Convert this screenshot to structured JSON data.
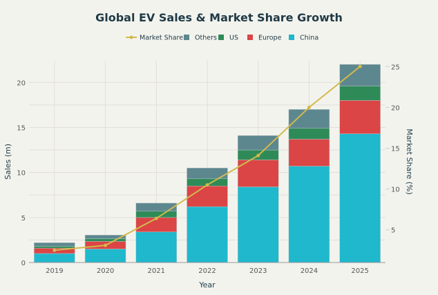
{
  "chart_data": {
    "type": "bar",
    "stacked": true,
    "title": "Global EV Sales & Market Share Growth",
    "xlabel": "Year",
    "ylabel": "Sales (m)",
    "y2label": "Market Share (%)",
    "categories": [
      "2019",
      "2020",
      "2021",
      "2022",
      "2023",
      "2024",
      "2025"
    ],
    "ylim": [
      0,
      22.4
    ],
    "y2lim": [
      1,
      25.7
    ],
    "yticks": [
      0,
      5,
      10,
      15,
      20
    ],
    "y2ticks": [
      5,
      10,
      15,
      20,
      25
    ],
    "grid": true,
    "legend_position": "top-center",
    "series": [
      {
        "name": "China",
        "type": "bar",
        "color": "#1FB8CD",
        "values": [
          1.0,
          1.5,
          3.4,
          6.2,
          8.4,
          10.7,
          14.3
        ]
      },
      {
        "name": "Europe",
        "type": "bar",
        "color": "#DB4545",
        "values": [
          0.6,
          0.85,
          1.6,
          2.3,
          3.0,
          3.0,
          3.7
        ]
      },
      {
        "name": "US",
        "type": "bar",
        "color": "#2E8B57",
        "values": [
          0.2,
          0.3,
          0.7,
          0.8,
          1.1,
          1.2,
          1.6
        ]
      },
      {
        "name": "Others",
        "type": "bar",
        "color": "#5D878F",
        "values": [
          0.4,
          0.4,
          0.9,
          1.2,
          1.6,
          2.1,
          2.4
        ]
      },
      {
        "name": "Market Share",
        "type": "line",
        "axis": "y2",
        "color": "#D2BA4C",
        "values": [
          2.5,
          3.1,
          6.4,
          10.5,
          14.1,
          20.0,
          25.0
        ]
      }
    ],
    "legend_order": [
      "Market Share",
      "Others",
      "US",
      "Europe",
      "China"
    ]
  }
}
